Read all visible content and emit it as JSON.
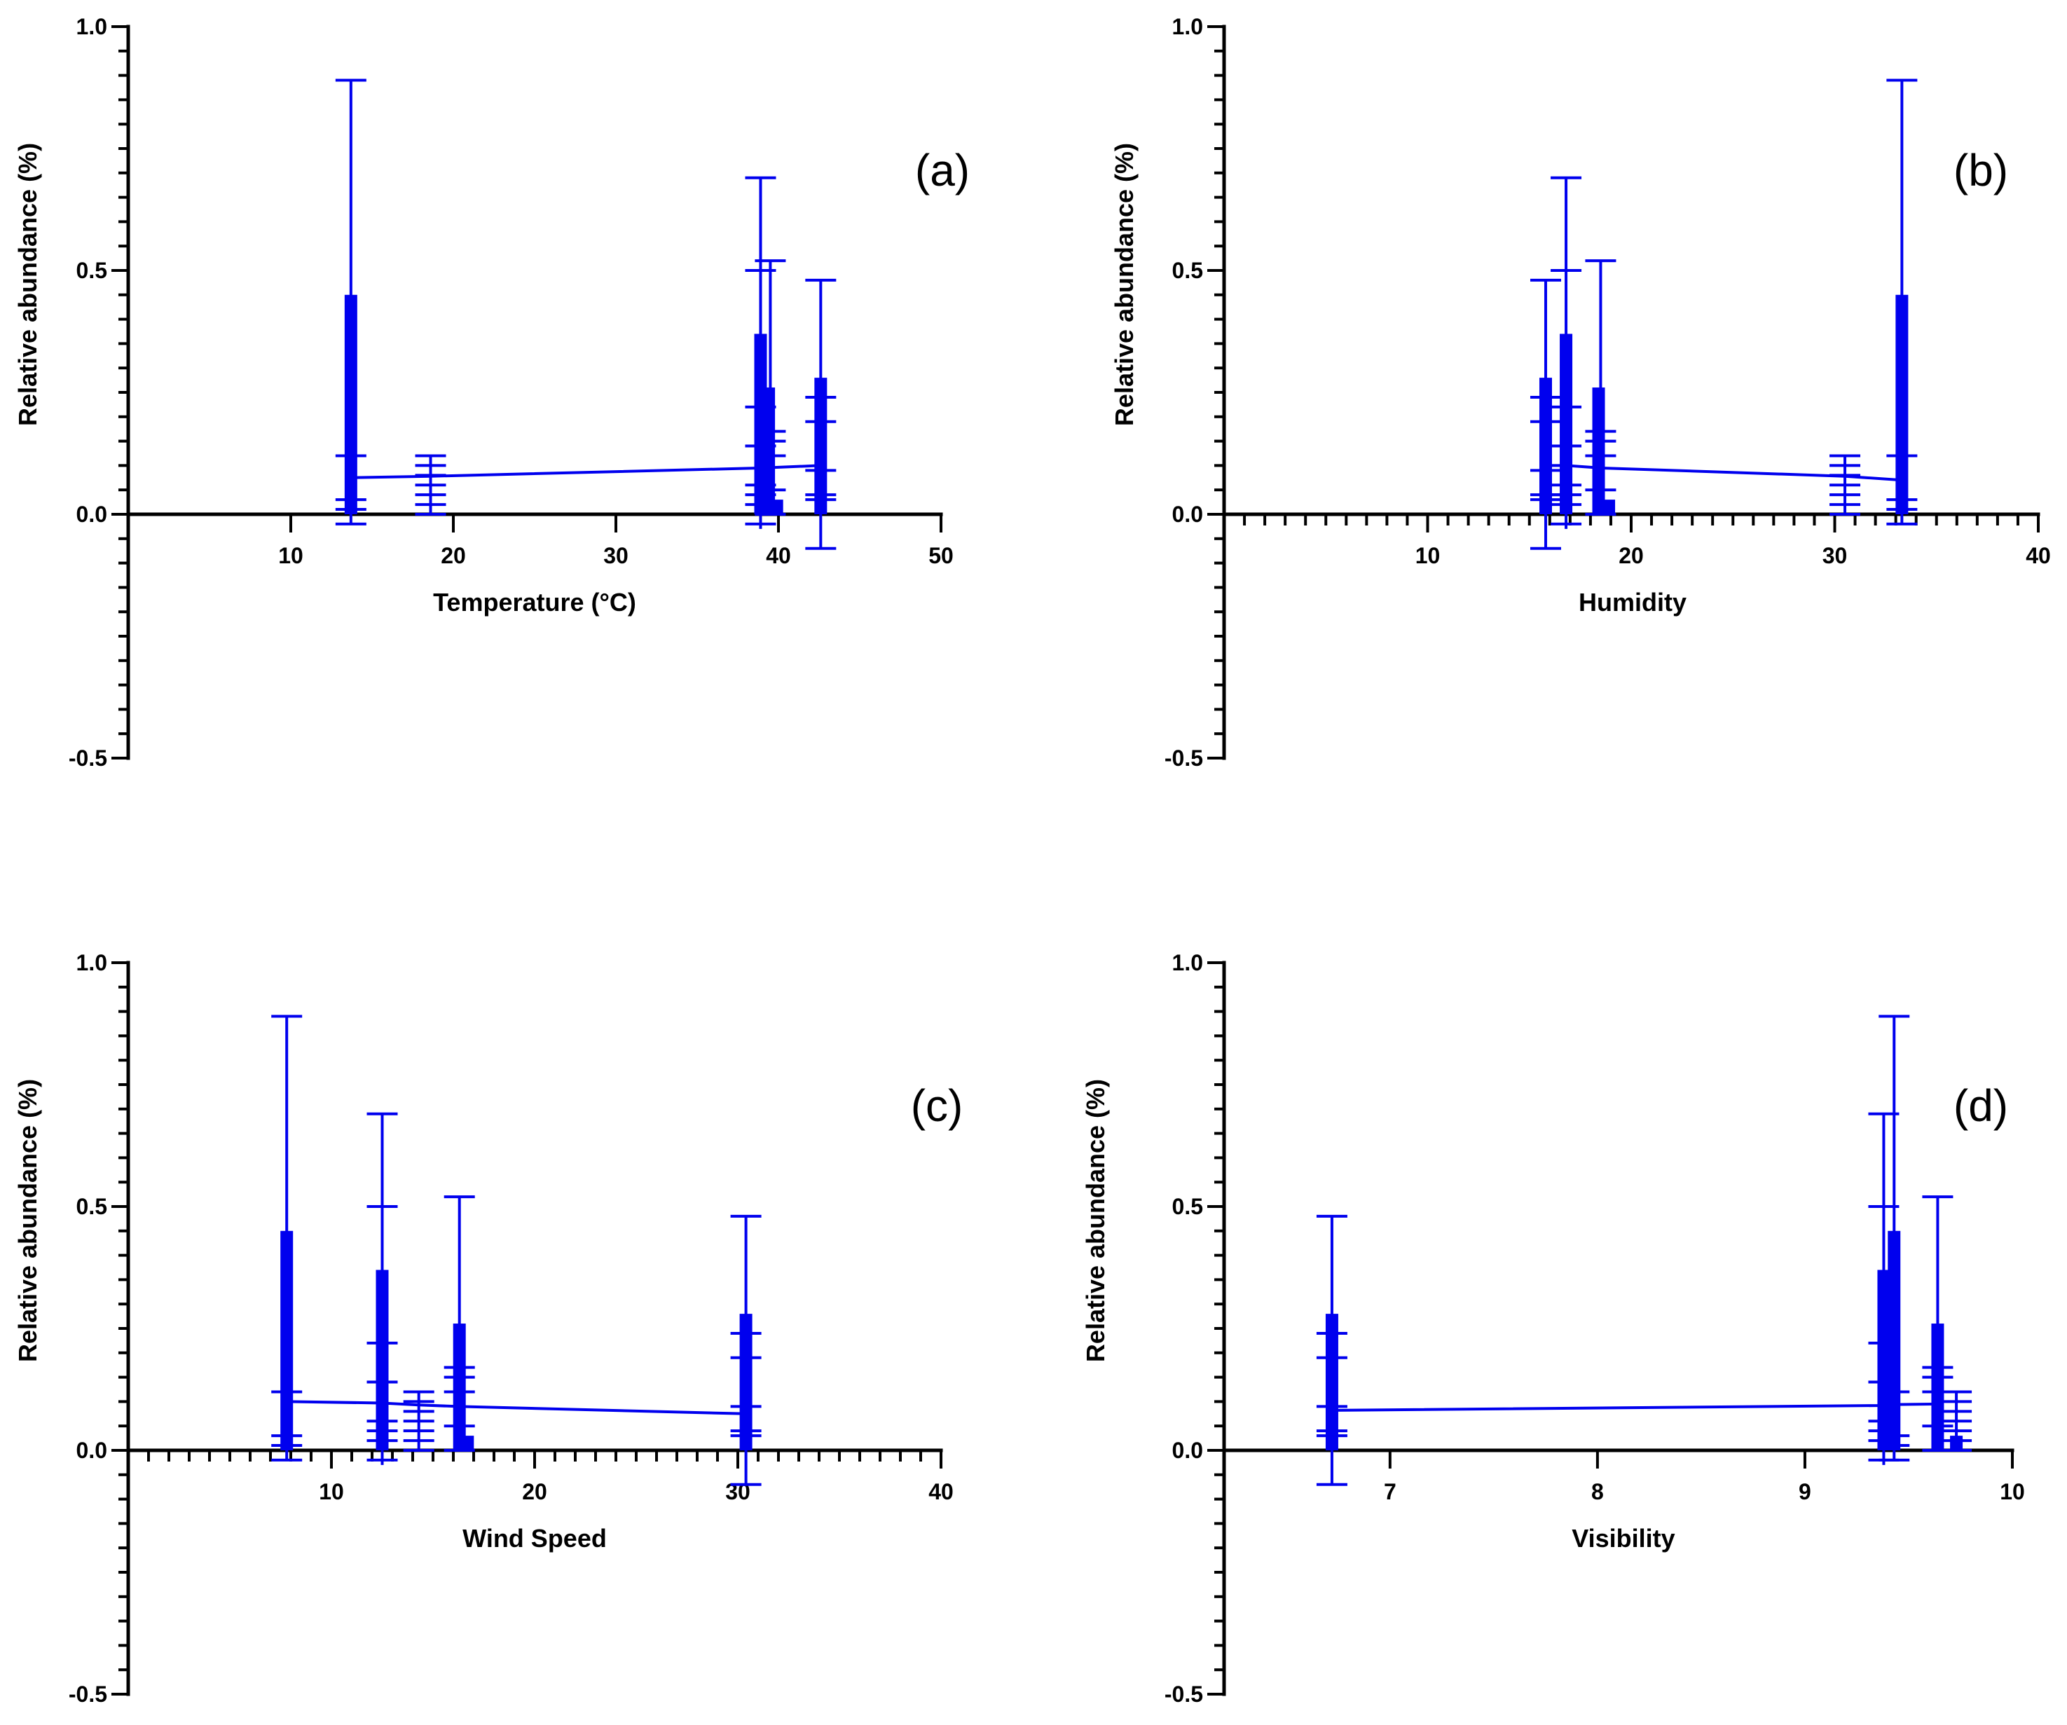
{
  "colors": {
    "series": "#0000ee",
    "axis": "#000000",
    "background": "#ffffff"
  },
  "chart_data": [
    {
      "type": "scatter",
      "panel_label": "(a)",
      "xlabel": "Temperature (°C)",
      "ylabel": "Relative abundance (%)",
      "xlim": [
        0,
        50
      ],
      "ylim": [
        -0.5,
        1.0
      ],
      "x_ticks": [
        10,
        20,
        30,
        40,
        50
      ],
      "y_ticks": [
        -0.5,
        0.0,
        0.5,
        1.0
      ],
      "x_tick_labels": [
        "10",
        "20",
        "30",
        "40",
        "50"
      ],
      "y_tick_labels": [
        "-0.5",
        "0.0",
        "0.5",
        "1.0"
      ],
      "minor_x_ticks": false,
      "trend": [
        [
          13.7,
          0.075
        ],
        [
          18.6,
          0.078
        ],
        [
          39.0,
          0.095
        ],
        [
          42.6,
          0.1
        ]
      ],
      "bars": [
        {
          "x": 13.7,
          "top": 0.45
        },
        {
          "x": 38.9,
          "top": 0.37
        },
        {
          "x": 39.4,
          "top": 0.26
        },
        {
          "x": 39.9,
          "top": 0.03
        },
        {
          "x": 42.6,
          "top": 0.28
        }
      ],
      "whiskers": [
        {
          "x": 13.7,
          "low": -0.02,
          "high": 0.89,
          "caps": [
            0.89,
            0.12,
            0.03,
            0.01,
            -0.02
          ]
        },
        {
          "x": 18.6,
          "low": 0.0,
          "high": 0.12,
          "caps": [
            0.12,
            0.1,
            0.08,
            0.06,
            0.04,
            0.02,
            0.0
          ]
        },
        {
          "x": 38.9,
          "low": -0.03,
          "high": 0.69,
          "caps": [
            0.69,
            0.5,
            0.22,
            0.14,
            0.06,
            0.04,
            0.02,
            -0.02
          ]
        },
        {
          "x": 39.5,
          "low": 0.0,
          "high": 0.52,
          "caps": [
            0.52,
            0.17,
            0.15,
            0.12,
            0.05,
            0.0
          ]
        },
        {
          "x": 42.6,
          "low": -0.07,
          "high": 0.48,
          "caps": [
            0.48,
            0.24,
            0.19,
            0.09,
            0.04,
            0.03,
            -0.07
          ]
        }
      ]
    },
    {
      "type": "scatter",
      "panel_label": "(b)",
      "xlabel": "Humidity",
      "ylabel": "Relative abundance (%)",
      "xlim": [
        0,
        40
      ],
      "ylim": [
        -0.5,
        1.0
      ],
      "x_ticks": [
        10,
        20,
        30,
        40
      ],
      "y_ticks": [
        -0.5,
        0.0,
        0.5,
        1.0
      ],
      "x_tick_labels": [
        "10",
        "20",
        "30",
        "40"
      ],
      "y_tick_labels": [
        "-0.5",
        "0.0",
        "0.5",
        "1.0"
      ],
      "minor_x_ticks": true,
      "trend": [
        [
          15.8,
          0.1
        ],
        [
          16.8,
          0.1
        ],
        [
          18.5,
          0.095
        ],
        [
          30.5,
          0.078
        ],
        [
          33.3,
          0.07
        ]
      ],
      "bars": [
        {
          "x": 15.8,
          "top": 0.28
        },
        {
          "x": 16.8,
          "top": 0.37
        },
        {
          "x": 18.4,
          "top": 0.26
        },
        {
          "x": 18.9,
          "top": 0.03
        },
        {
          "x": 33.3,
          "top": 0.45
        }
      ],
      "whiskers": [
        {
          "x": 15.8,
          "low": -0.07,
          "high": 0.48,
          "caps": [
            0.48,
            0.24,
            0.19,
            0.09,
            0.04,
            0.03,
            -0.07
          ]
        },
        {
          "x": 16.8,
          "low": -0.03,
          "high": 0.69,
          "caps": [
            0.69,
            0.5,
            0.22,
            0.14,
            0.06,
            0.04,
            0.02,
            -0.02
          ]
        },
        {
          "x": 18.5,
          "low": 0.0,
          "high": 0.52,
          "caps": [
            0.52,
            0.17,
            0.15,
            0.12,
            0.05,
            0.0
          ]
        },
        {
          "x": 30.5,
          "low": 0.0,
          "high": 0.12,
          "caps": [
            0.12,
            0.1,
            0.08,
            0.06,
            0.04,
            0.02,
            0.0
          ]
        },
        {
          "x": 33.3,
          "low": -0.02,
          "high": 0.89,
          "caps": [
            0.89,
            0.12,
            0.03,
            0.01,
            -0.02
          ]
        }
      ]
    },
    {
      "type": "scatter",
      "panel_label": "(c)",
      "xlabel": "Wind Speed",
      "ylabel": "Relative abundance (%)",
      "xlim": [
        0,
        40
      ],
      "ylim": [
        -0.5,
        1.0
      ],
      "x_ticks": [
        10,
        20,
        30,
        40
      ],
      "y_ticks": [
        -0.5,
        0.0,
        0.5,
        1.0
      ],
      "x_tick_labels": [
        "10",
        "20",
        "30",
        "40"
      ],
      "y_tick_labels": [
        "-0.5",
        "0.0",
        "0.5",
        "1.0"
      ],
      "minor_x_ticks": true,
      "trend": [
        [
          7.8,
          0.1
        ],
        [
          12.5,
          0.097
        ],
        [
          14.3,
          0.093
        ],
        [
          16.3,
          0.09
        ],
        [
          30.4,
          0.075
        ]
      ],
      "bars": [
        {
          "x": 7.8,
          "top": 0.45
        },
        {
          "x": 12.5,
          "top": 0.37
        },
        {
          "x": 16.3,
          "top": 0.26
        },
        {
          "x": 16.7,
          "top": 0.03
        },
        {
          "x": 30.4,
          "top": 0.28
        }
      ],
      "whiskers": [
        {
          "x": 7.8,
          "low": -0.02,
          "high": 0.89,
          "caps": [
            0.89,
            0.12,
            0.03,
            0.01,
            -0.02
          ]
        },
        {
          "x": 12.5,
          "low": -0.03,
          "high": 0.69,
          "caps": [
            0.69,
            0.5,
            0.22,
            0.14,
            0.06,
            0.04,
            0.02,
            -0.02
          ]
        },
        {
          "x": 14.3,
          "low": 0.0,
          "high": 0.12,
          "caps": [
            0.12,
            0.1,
            0.08,
            0.06,
            0.04,
            0.02,
            0.0
          ]
        },
        {
          "x": 16.3,
          "low": 0.0,
          "high": 0.52,
          "caps": [
            0.52,
            0.17,
            0.15,
            0.12,
            0.05,
            0.0
          ]
        },
        {
          "x": 30.4,
          "low": -0.07,
          "high": 0.48,
          "caps": [
            0.48,
            0.24,
            0.19,
            0.09,
            0.04,
            0.03,
            -0.07
          ]
        }
      ]
    },
    {
      "type": "scatter",
      "panel_label": "(d)",
      "xlabel": "Visibility",
      "ylabel": "Relative abundance (%)",
      "xlim": [
        6.2,
        10
      ],
      "ylim": [
        -0.5,
        1.0
      ],
      "x_ticks": [
        7,
        8,
        9,
        10
      ],
      "y_ticks": [
        -0.5,
        0.0,
        0.5,
        1.0
      ],
      "x_tick_labels": [
        "7",
        "8",
        "9",
        "10"
      ],
      "y_tick_labels": [
        "-0.5",
        "0.0",
        "0.5",
        "1.0"
      ],
      "minor_x_ticks": false,
      "trend": [
        [
          6.72,
          0.082
        ],
        [
          9.38,
          0.092
        ],
        [
          9.43,
          0.094
        ],
        [
          9.64,
          0.095
        ]
      ],
      "bars": [
        {
          "x": 6.72,
          "top": 0.28
        },
        {
          "x": 9.38,
          "top": 0.37
        },
        {
          "x": 9.43,
          "top": 0.45
        },
        {
          "x": 9.64,
          "top": 0.26
        },
        {
          "x": 9.73,
          "top": 0.03
        }
      ],
      "whiskers": [
        {
          "x": 6.72,
          "low": -0.07,
          "high": 0.48,
          "caps": [
            0.48,
            0.24,
            0.19,
            0.09,
            0.04,
            0.03,
            -0.07
          ]
        },
        {
          "x": 9.38,
          "low": -0.03,
          "high": 0.69,
          "caps": [
            0.69,
            0.5,
            0.22,
            0.14,
            0.06,
            0.04,
            0.02,
            -0.02
          ]
        },
        {
          "x": 9.43,
          "low": -0.02,
          "high": 0.89,
          "caps": [
            0.89,
            0.12,
            0.03,
            0.01,
            -0.02
          ]
        },
        {
          "x": 9.64,
          "low": 0.0,
          "high": 0.52,
          "caps": [
            0.52,
            0.17,
            0.15,
            0.12,
            0.05,
            0.0
          ]
        },
        {
          "x": 9.73,
          "low": 0.0,
          "high": 0.12,
          "caps": [
            0.12,
            0.1,
            0.08,
            0.06,
            0.04,
            0.02,
            0.0
          ]
        }
      ]
    }
  ]
}
